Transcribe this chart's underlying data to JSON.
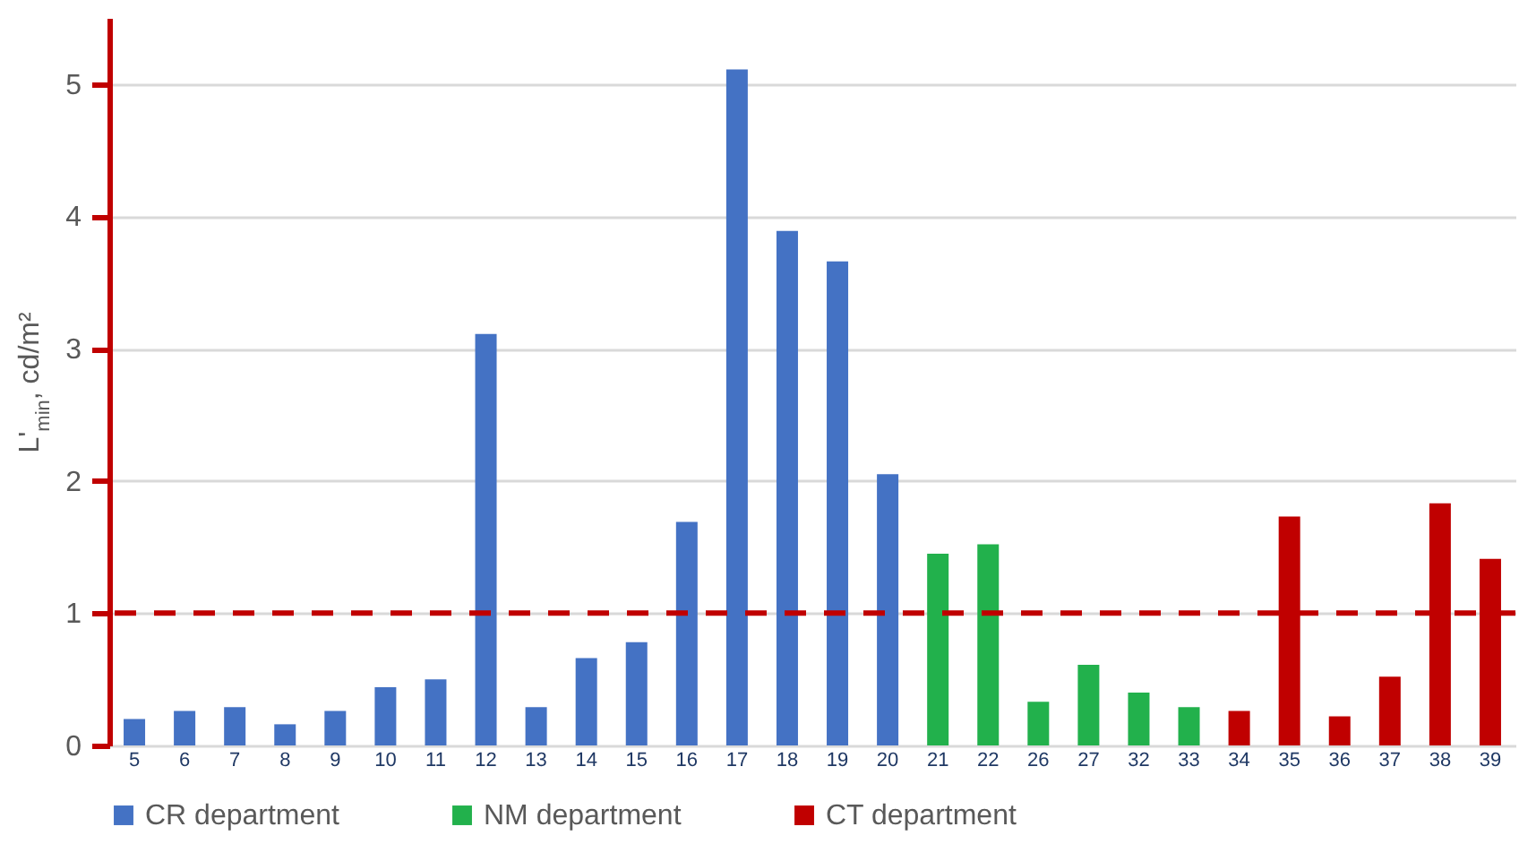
{
  "chart_data": {
    "type": "bar",
    "ylabel": "L'$_{min}$, cd/m²",
    "categories": [
      "5",
      "6",
      "7",
      "8",
      "9",
      "10",
      "11",
      "12",
      "13",
      "14",
      "15",
      "16",
      "17",
      "18",
      "19",
      "20",
      "21",
      "22",
      "26",
      "27",
      "32",
      "33",
      "34",
      "35",
      "36",
      "37",
      "38",
      "39"
    ],
    "series": [
      {
        "name": "CR department",
        "color": "#4472c4",
        "values": [
          0.2,
          0.26,
          0.29,
          0.16,
          0.26,
          0.44,
          0.5,
          3.11,
          0.29,
          0.66,
          0.78,
          1.69,
          5.11,
          3.89,
          3.66,
          2.05,
          null,
          null,
          null,
          null,
          null,
          null,
          null,
          null,
          null,
          null,
          null,
          null
        ]
      },
      {
        "name": "NM department",
        "color": "#22b14c",
        "values": [
          null,
          null,
          null,
          null,
          null,
          null,
          null,
          null,
          null,
          null,
          null,
          null,
          null,
          null,
          null,
          null,
          1.45,
          1.52,
          0.33,
          0.61,
          0.4,
          0.29,
          null,
          null,
          null,
          null,
          null,
          null
        ]
      },
      {
        "name": "CT department",
        "color": "#c00000",
        "values": [
          null,
          null,
          null,
          null,
          null,
          null,
          null,
          null,
          null,
          null,
          null,
          null,
          null,
          null,
          null,
          null,
          null,
          null,
          null,
          null,
          null,
          null,
          0.26,
          1.73,
          0.22,
          0.52,
          1.83,
          1.41
        ]
      }
    ],
    "ylim": [
      0,
      5.5
    ],
    "yticks": [
      0,
      1,
      2,
      3,
      4,
      5
    ],
    "grid": "y",
    "legend": "bottom",
    "ref_lines": [
      {
        "axis": "y",
        "value": 1,
        "color": "#c00000",
        "line_style": "dashed"
      }
    ]
  }
}
